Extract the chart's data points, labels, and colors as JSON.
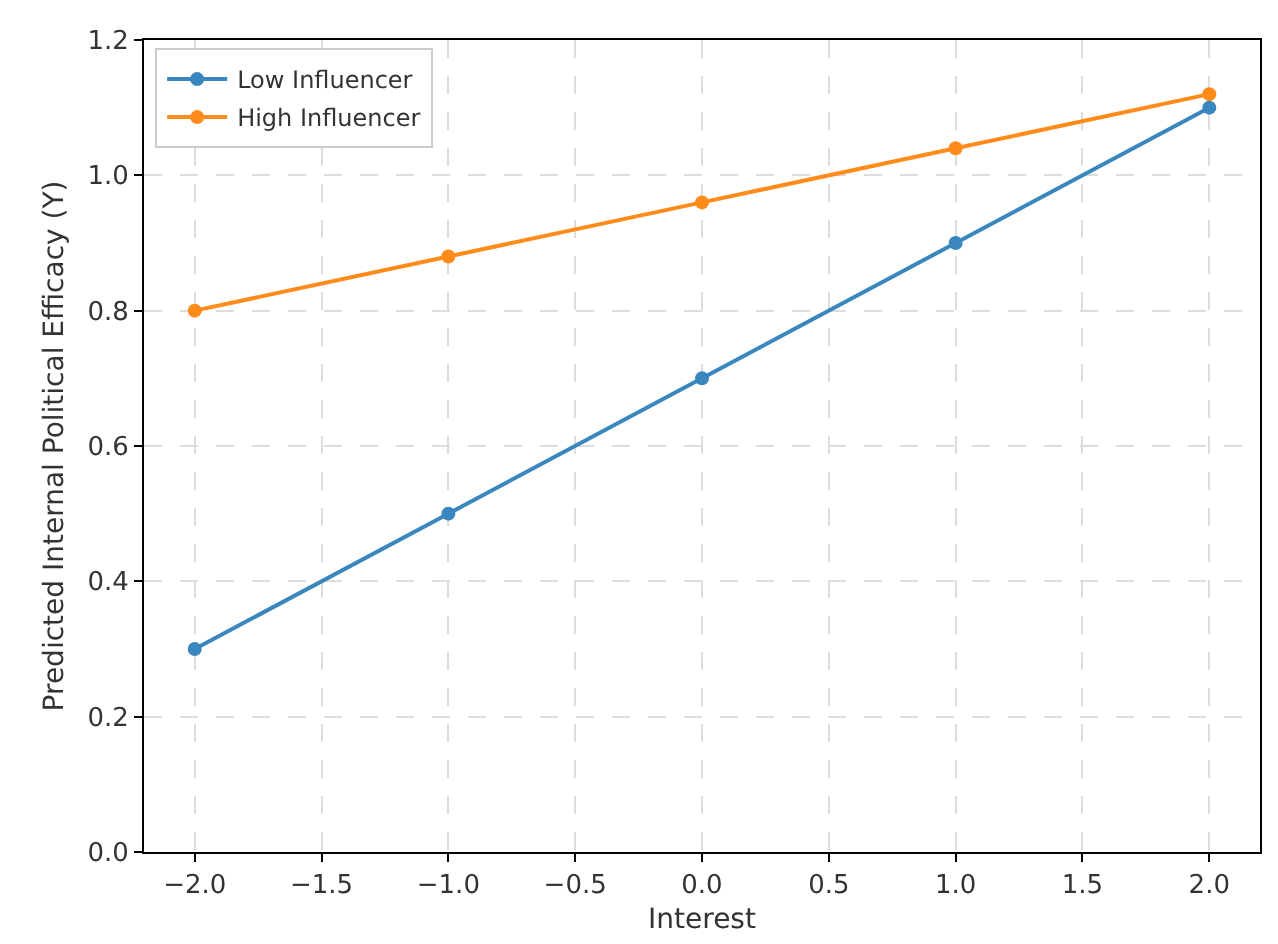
{
  "chart_data": {
    "type": "line",
    "xlabel": "Interest",
    "ylabel": "Predicted Internal Political Efficacy (Y)",
    "x": [
      -2,
      -1,
      0,
      1,
      2
    ],
    "series": [
      {
        "name": "Low Influencer",
        "color": "#3a87c0",
        "values": [
          0.3,
          0.5,
          0.7,
          0.9,
          1.1
        ]
      },
      {
        "name": "High Influencer",
        "color": "#ff8c1a",
        "values": [
          0.8,
          0.88,
          0.96,
          1.04,
          1.12
        ]
      }
    ],
    "xlim": [
      -2.2,
      2.2
    ],
    "xticks": [
      {
        "value": -2,
        "label": "−2.0"
      },
      {
        "value": -1.5,
        "label": "−1.5"
      },
      {
        "value": -1,
        "label": "−1.0"
      },
      {
        "value": -0.5,
        "label": "−0.5"
      },
      {
        "value": 0,
        "label": "0.0"
      },
      {
        "value": 0.5,
        "label": "0.5"
      },
      {
        "value": 1,
        "label": "1.0"
      },
      {
        "value": 1.5,
        "label": "1.5"
      },
      {
        "value": 2,
        "label": "2.0"
      }
    ],
    "ylim": [
      0,
      1.2
    ],
    "yticks": [
      {
        "value": 0,
        "label": "0.0"
      },
      {
        "value": 0.2,
        "label": "0.2"
      },
      {
        "value": 0.4,
        "label": "0.4"
      },
      {
        "value": 0.6,
        "label": "0.6"
      },
      {
        "value": 0.8,
        "label": "0.8"
      },
      {
        "value": 1,
        "label": "1.0"
      },
      {
        "value": 1.2,
        "label": "1.2"
      }
    ],
    "grid": true,
    "legend": "top left",
    "marker": "circle",
    "line_style": "solid"
  }
}
